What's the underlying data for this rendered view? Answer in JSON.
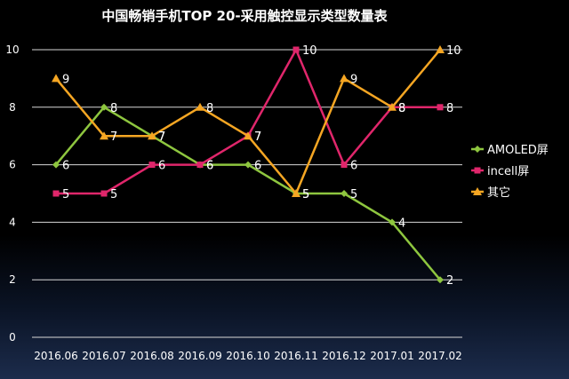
{
  "chart_data": {
    "type": "line",
    "title": "中国畅销手机TOP 20-采用触控显示类型数量表",
    "categories": [
      "2016.06",
      "2016.07",
      "2016.08",
      "2016.09",
      "2016.10",
      "2016.11",
      "2016.12",
      "2017.01",
      "2017.02"
    ],
    "ylim": [
      0,
      10
    ],
    "yticks": [
      0,
      2,
      4,
      6,
      8,
      10
    ],
    "grid": true,
    "legend": "right",
    "series": [
      {
        "name": "AMOLED屏",
        "color": "#8ec63f",
        "marker": "diamond",
        "values": [
          6,
          8,
          7,
          6,
          6,
          5,
          5,
          4,
          2
        ]
      },
      {
        "name": "incell屏",
        "color": "#e0266b",
        "marker": "square",
        "values": [
          5,
          5,
          6,
          6,
          7,
          10,
          6,
          8,
          8
        ]
      },
      {
        "name": "其它",
        "color": "#f5a623",
        "marker": "triangle",
        "values": [
          9,
          7,
          7,
          8,
          7,
          5,
          9,
          8,
          10
        ]
      }
    ]
  }
}
